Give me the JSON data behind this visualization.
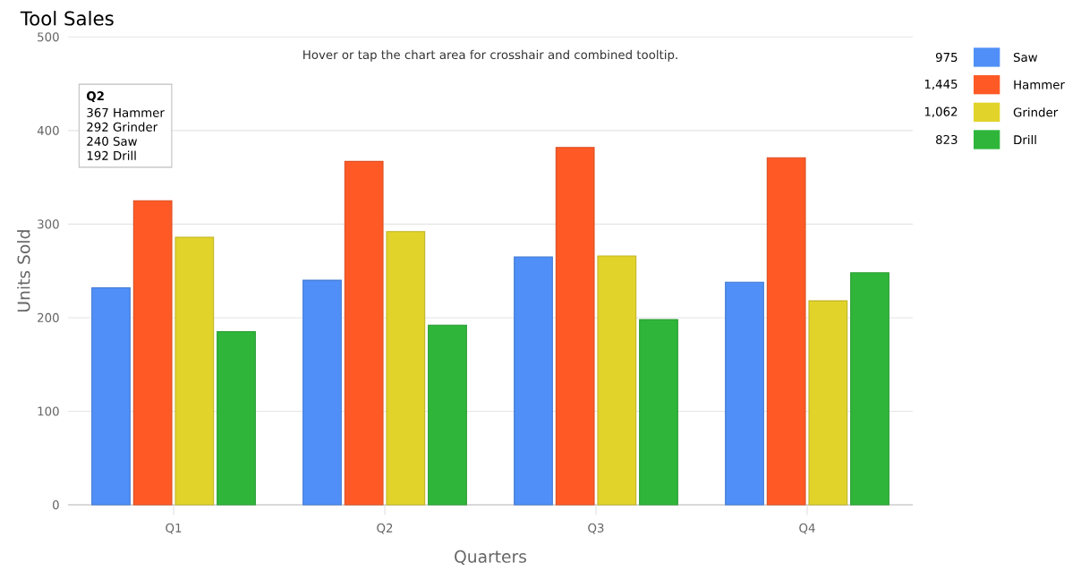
{
  "chart_data": {
    "type": "bar",
    "title": "Tool Sales",
    "xlabel": "Quarters",
    "ylabel": "Units Sold",
    "categories": [
      "Q1",
      "Q2",
      "Q3",
      "Q4"
    ],
    "series": [
      {
        "name": "Saw",
        "color": "#4f8ff7",
        "values": [
          232,
          240,
          265,
          238
        ]
      },
      {
        "name": "Hammer",
        "color": "#ff5a26",
        "values": [
          325,
          367,
          382,
          371
        ]
      },
      {
        "name": "Grinder",
        "color": "#e2d32a",
        "values": [
          286,
          292,
          266,
          218
        ]
      },
      {
        "name": "Drill",
        "color": "#2fb63a",
        "values": [
          185,
          192,
          198,
          248
        ]
      }
    ],
    "ylim": [
      0,
      500
    ],
    "yticks": [
      0,
      100,
      200,
      300,
      400,
      500
    ],
    "grid": "y",
    "legend": "right",
    "annotations": [
      "Hover or tap the chart area for crosshair and combined tooltip.",
      "Q2",
      "367 Hammer",
      "292 Grinder",
      "240 Saw",
      "192 Drill",
      "975",
      "1,445",
      "1,062",
      "823"
    ]
  }
}
